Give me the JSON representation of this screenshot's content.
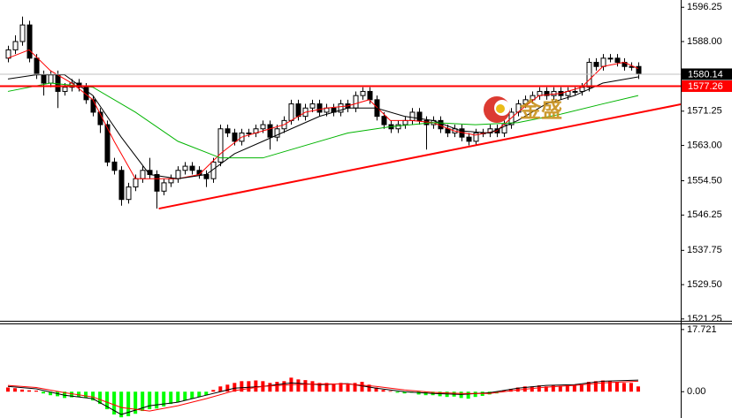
{
  "chart_data": [
    {
      "type": "candlestick",
      "xlim": [
        -1.12,
        95.0
      ],
      "ylim": [
        1520.8,
        1598.0
      ],
      "yticks": [
        1596.25,
        {
          "value": 1588,
          "label": "1588.00"
        },
        1571.25,
        {
          "value": 1563,
          "label": "1563.00"
        },
        {
          "value": 1554.5,
          "label": "1554.50"
        },
        1546.25,
        1537.75,
        {
          "value": 1529.5,
          "label": "1529.50"
        },
        1521.25
      ],
      "up_color": "#ffffff",
      "down_color": "#000000",
      "open": [
        1584,
        1586,
        1588,
        1592,
        1584,
        1580,
        1578,
        1580,
        1576,
        1577,
        1578,
        1577,
        1574,
        1571,
        1568,
        1559,
        1557,
        1550,
        1553,
        1555,
        1557,
        1556,
        1552,
        1554,
        1555,
        1557,
        1558,
        1557,
        1556,
        1555,
        1559,
        1567,
        1566,
        1564,
        1566,
        1566,
        1567,
        1568,
        1565,
        1567,
        1569,
        1573,
        1570,
        1572,
        1573,
        1571,
        1572,
        1571,
        1573,
        1572,
        1575,
        1576,
        1574,
        1570,
        1568,
        1567,
        1568,
        1569,
        1571,
        1569,
        1568,
        1569,
        1567,
        1566,
        1567,
        1565,
        1564,
        1566,
        1566,
        1567,
        1566,
        1568,
        1571,
        1573,
        1574,
        1575,
        1576,
        1575,
        1576,
        1575,
        1576,
        1576,
        1577,
        1583,
        1582,
        1584,
        1584,
        1583,
        1582,
        1582
      ],
      "high": [
        1587,
        1589.5,
        1594,
        1593,
        1585,
        1581,
        1581,
        1581,
        1578,
        1579,
        1579,
        1578,
        1575,
        1572,
        1569,
        1560,
        1558,
        1554,
        1556,
        1558,
        1560,
        1557,
        1555,
        1556,
        1558,
        1559,
        1559,
        1558,
        1557,
        1560,
        1568,
        1568,
        1567,
        1567,
        1567,
        1568,
        1569,
        1569,
        1568,
        1570,
        1574,
        1574,
        1573,
        1574,
        1574,
        1573,
        1573,
        1574,
        1574,
        1576,
        1577,
        1577,
        1575,
        1571,
        1569,
        1569,
        1570,
        1572,
        1572,
        1570,
        1570,
        1570,
        1568,
        1568,
        1568,
        1566,
        1567,
        1567,
        1568,
        1568,
        1569,
        1572,
        1574,
        1575,
        1576,
        1577,
        1577,
        1577,
        1577,
        1577,
        1577,
        1578,
        1584,
        1584,
        1585,
        1585,
        1585,
        1584,
        1583,
        1583
      ],
      "low": [
        1583,
        1585,
        1587,
        1583,
        1579,
        1575,
        1577,
        1572,
        1575,
        1576,
        1576,
        1573,
        1570,
        1566,
        1558,
        1556,
        1548.5,
        1549,
        1552,
        1554,
        1555,
        1547.8,
        1551,
        1553,
        1554,
        1556,
        1556,
        1555,
        1553,
        1554,
        1558,
        1565,
        1563,
        1563,
        1565,
        1565,
        1566,
        1562,
        1564,
        1566,
        1568,
        1569,
        1569,
        1571,
        1570,
        1570,
        1570,
        1570,
        1571,
        1571,
        1574,
        1573,
        1569,
        1567,
        1566,
        1566,
        1567,
        1568,
        1568,
        1562,
        1567,
        1566,
        1565,
        1565,
        1564,
        1563,
        1563,
        1565,
        1565,
        1565,
        1565,
        1567,
        1570,
        1572,
        1573,
        1574,
        1574,
        1574,
        1574,
        1574,
        1575,
        1575,
        1576,
        1581,
        1581,
        1583,
        1582,
        1581,
        1581,
        1579
      ],
      "close": [
        1586,
        1588,
        1592,
        1584,
        1580,
        1578,
        1580,
        1576,
        1577,
        1578,
        1577,
        1574,
        1571,
        1568,
        1559,
        1557,
        1550,
        1553,
        1555,
        1557,
        1556,
        1552,
        1554,
        1555,
        1557,
        1558,
        1557,
        1556,
        1555,
        1559,
        1567,
        1566,
        1564,
        1566,
        1566,
        1567,
        1568,
        1565,
        1567,
        1569,
        1573,
        1570,
        1572,
        1573,
        1571,
        1572,
        1571,
        1573,
        1572,
        1575,
        1576,
        1574,
        1570,
        1568,
        1567,
        1568,
        1569,
        1571,
        1569,
        1568,
        1569,
        1567,
        1566,
        1567,
        1565,
        1564,
        1566,
        1566,
        1567,
        1566,
        1568,
        1571,
        1573,
        1574,
        1575,
        1576,
        1575,
        1576,
        1575,
        1576,
        1576,
        1577,
        1583,
        1582,
        1584,
        1584,
        1583,
        1582,
        1582,
        1580.14
      ],
      "lines": [
        {
          "color": "#ff0000",
          "x": [
            0,
            3,
            6,
            9,
            12,
            15,
            18,
            21,
            24,
            27,
            30,
            33,
            36,
            39,
            42,
            45,
            48,
            51,
            54,
            57,
            60,
            63,
            66,
            69,
            72,
            75,
            78,
            81,
            84,
            87,
            89
          ],
          "values": [
            1584,
            1586,
            1581,
            1578,
            1574,
            1564,
            1555,
            1555,
            1555,
            1556,
            1561,
            1565,
            1566.5,
            1568,
            1571,
            1572,
            1572.5,
            1574,
            1569,
            1569,
            1568.5,
            1566.5,
            1565.5,
            1566.5,
            1571,
            1575,
            1575.5,
            1577,
            1582,
            1583,
            1581.5
          ]
        },
        {
          "color": "#000000",
          "x": [
            0,
            4,
            8,
            12,
            16,
            20,
            24,
            28,
            32,
            36,
            40,
            44,
            48,
            52,
            56,
            60,
            64,
            68,
            72,
            76,
            80,
            84,
            89
          ],
          "values": [
            1579,
            1580,
            1580,
            1575,
            1565,
            1556,
            1555,
            1556,
            1561,
            1564,
            1567,
            1570,
            1572,
            1572,
            1570,
            1569,
            1566.5,
            1566,
            1569,
            1573,
            1575,
            1578,
            1579.5
          ]
        },
        {
          "color": "#00b400",
          "x": [
            0,
            6,
            12,
            18,
            24,
            30,
            36,
            42,
            48,
            54,
            60,
            66,
            72,
            78,
            84,
            89
          ],
          "values": [
            1576,
            1578,
            1577,
            1571,
            1564,
            1560,
            1560,
            1563,
            1566,
            1567.5,
            1568.5,
            1568,
            1568.5,
            1570.5,
            1573,
            1575
          ]
        }
      ],
      "trendlines": [
        {
          "color": "#ff0000",
          "x": [
            21.3,
            95.0
          ],
          "values": [
            1547.8,
            1572.9
          ]
        }
      ],
      "price_lines": [
        {
          "value": 1580.14,
          "color": "#c0c0c0",
          "box": "#000000"
        },
        {
          "value": 1577.26,
          "color": "#ff0000",
          "box": "#ff0000"
        }
      ],
      "watermark": "金盛"
    },
    {
      "type": "macd",
      "xlim": [
        -1.12,
        95.0
      ],
      "ylim": [
        -7.5,
        19.2
      ],
      "yticks": [
        17.721,
        {
          "value": 0,
          "label": "0.00"
        }
      ],
      "positive_color": "#ff0000",
      "negative_color": "#00ff00",
      "values": [
        1.2,
        1.0,
        0.6,
        0.4,
        0.3,
        -0.5,
        -1.0,
        -1.3,
        -1.8,
        -1.6,
        -1.5,
        -1.8,
        -2.5,
        -3.5,
        -5.0,
        -6.5,
        -7.3,
        -7.0,
        -6.3,
        -5.5,
        -5.0,
        -4.8,
        -4.2,
        -3.5,
        -3.0,
        -2.5,
        -2.0,
        -1.5,
        -1.0,
        0.5,
        1.5,
        2.0,
        2.5,
        3.0,
        3.0,
        3.2,
        3.0,
        2.5,
        2.8,
        3.0,
        4.0,
        3.5,
        3.3,
        3.0,
        2.5,
        2.5,
        2.3,
        2.5,
        2.2,
        2.5,
        2.8,
        2.0,
        1.2,
        0.5,
        0.2,
        -0.3,
        -0.5,
        -0.3,
        -0.8,
        -1.0,
        -1.0,
        -1.3,
        -1.5,
        -1.4,
        -1.8,
        -2.0,
        -1.5,
        -1.2,
        -0.8,
        -0.5,
        0.3,
        0.8,
        1.2,
        1.5,
        1.5,
        1.8,
        1.5,
        1.8,
        1.6,
        1.8,
        1.8,
        2.0,
        2.8,
        3.0,
        3.2,
        3.0,
        2.8,
        2.5,
        2.5,
        1.5
      ],
      "lines": [
        {
          "color": "#000000",
          "x": [
            0,
            4,
            8,
            12,
            16,
            20,
            24,
            28,
            32,
            36,
            40,
            44,
            48,
            52,
            56,
            60,
            64,
            68,
            72,
            76,
            80,
            84,
            89
          ],
          "values": [
            1.5,
            0.8,
            -1,
            -2,
            -6.5,
            -4,
            -3,
            -1,
            1,
            1.5,
            2.5,
            2,
            2.3,
            1,
            0,
            -0.5,
            -0.8,
            -0.3,
            1,
            1.8,
            2,
            3,
            3.3
          ]
        },
        {
          "color": "#ff0000",
          "x": [
            0,
            4,
            8,
            12,
            16,
            20,
            24,
            28,
            32,
            36,
            40,
            44,
            48,
            52,
            56,
            60,
            64,
            68,
            72,
            76,
            80,
            84,
            89
          ],
          "values": [
            1.8,
            1.2,
            -0.3,
            -1.5,
            -4.5,
            -5.5,
            -4,
            -2,
            0.3,
            1.5,
            2,
            2.2,
            2.2,
            1.5,
            0.5,
            -0.2,
            -0.5,
            -0.5,
            0.5,
            1.3,
            1.8,
            2.5,
            3
          ]
        }
      ]
    }
  ]
}
